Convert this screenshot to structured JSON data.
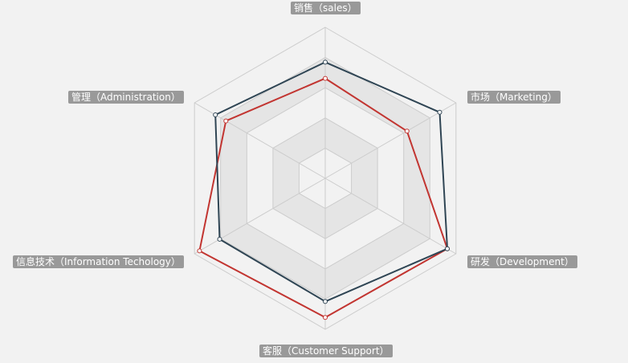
{
  "chart_data": {
    "type": "radar",
    "indicators": [
      {
        "name": "销售（sales）",
        "max": 6500
      },
      {
        "name": "市场（Marketing）",
        "max": 16000
      },
      {
        "name": "研发（Development）",
        "max": 30000
      },
      {
        "name": "客服（Customer Support）",
        "max": 38000
      },
      {
        "name": "信息技术（Information Techology）",
        "max": 52000
      },
      {
        "name": "管理（Administration）",
        "max": 25000
      }
    ],
    "series": [
      {
        "values": [
          4300,
          10000,
          28000,
          35000,
          50000,
          19000
        ],
        "color": "#c23531"
      },
      {
        "values": [
          5000,
          14000,
          28000,
          31000,
          42000,
          21000
        ],
        "color": "#2f4554"
      }
    ],
    "split_number": 5,
    "split_area_colors": [
      "#f2f2f2",
      "#e5e5e5"
    ],
    "split_line_color": "#cccccc"
  }
}
